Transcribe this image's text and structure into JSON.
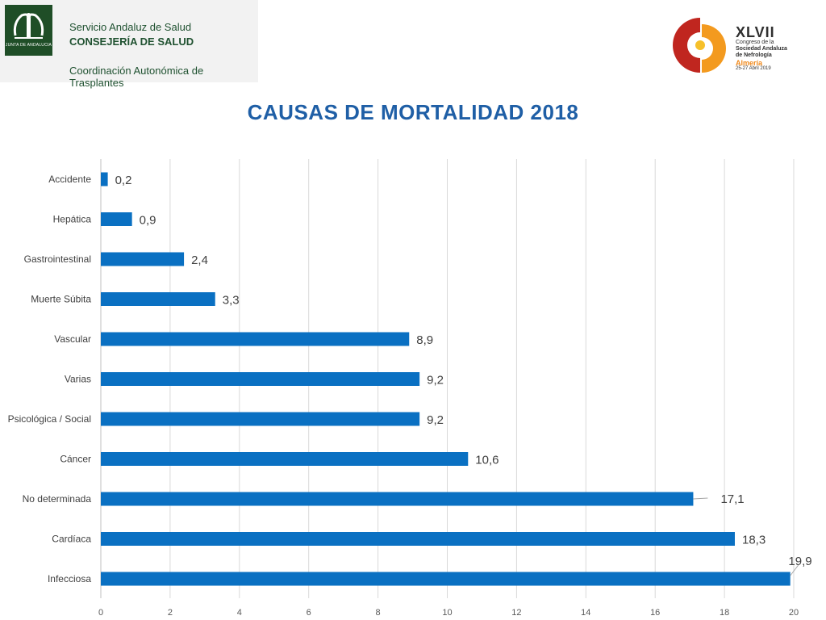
{
  "header": {
    "junta_logo_text": "JUNTA DE ANDALUCIA",
    "sas_line1": "Servicio Andaluz de Salud",
    "sas_line2": "CONSEJERÍA DE SALUD",
    "sas_line3": "Coordinación Autonómica de Trasplantes",
    "congress_number": "XLVII",
    "congress_line1": "Congreso de la",
    "congress_line2": "Sociedad Andaluza",
    "congress_line3": "de Nefrología",
    "congress_city": "Almería",
    "congress_dates": "25-27 Abril 2019"
  },
  "colors": {
    "bar": "#0a70c2",
    "title": "#1f5fa6",
    "gridline": "#d9d9d9",
    "logo_red": "#c0261f",
    "logo_orange": "#f39a1f"
  },
  "chart_data": {
    "type": "bar",
    "orientation": "horizontal",
    "title": "CAUSAS DE MORTALIDAD 2018",
    "categories": [
      "Accidente",
      "Hepática",
      "Gastrointestinal",
      "Muerte Súbita",
      "Vascular",
      "Varias",
      "Psicológica / Social",
      "Cáncer",
      "No determinada",
      "Cardíaca",
      "Infecciosa"
    ],
    "values": [
      0.2,
      0.9,
      2.4,
      3.3,
      8.9,
      9.2,
      9.2,
      10.6,
      17.1,
      18.3,
      19.9
    ],
    "value_labels": [
      "0,2",
      "0,9",
      "2,4",
      "3,3",
      "8,9",
      "9,2",
      "9,2",
      "10,6",
      "17,1",
      "18,3",
      "19,9"
    ],
    "xlim": [
      0,
      20
    ],
    "xticks": [
      0,
      2,
      4,
      6,
      8,
      10,
      12,
      14,
      16,
      18,
      20
    ],
    "xlabel": "",
    "ylabel": "",
    "grid": true,
    "legend": "none"
  }
}
